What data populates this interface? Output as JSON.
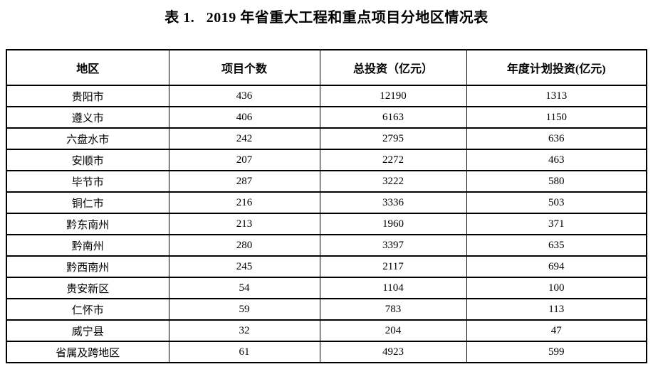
{
  "title": "表 1.   2019 年省重大工程和重点项目分地区情况表",
  "table": {
    "headers": [
      "地区",
      "项目个数",
      "总投资（亿元）",
      "年度计划投资(亿元)"
    ],
    "rows": [
      {
        "region": "贵阳市",
        "count": "436",
        "total": "12190",
        "annual": "1313"
      },
      {
        "region": "遵义市",
        "count": "406",
        "total": "6163",
        "annual": "1150"
      },
      {
        "region": "六盘水市",
        "count": "242",
        "total": "2795",
        "annual": "636"
      },
      {
        "region": "安顺市",
        "count": "207",
        "total": "2272",
        "annual": "463"
      },
      {
        "region": "毕节市",
        "count": "287",
        "total": "3222",
        "annual": "580"
      },
      {
        "region": "铜仁市",
        "count": "216",
        "total": "3336",
        "annual": "503"
      },
      {
        "region": "黔东南州",
        "count": "213",
        "total": "1960",
        "annual": "371"
      },
      {
        "region": "黔南州",
        "count": "280",
        "total": "3397",
        "annual": "635"
      },
      {
        "region": "黔西南州",
        "count": "245",
        "total": "2117",
        "annual": "694"
      },
      {
        "region": "贵安新区",
        "count": "54",
        "total": "1104",
        "annual": "100"
      },
      {
        "region": "仁怀市",
        "count": "59",
        "total": "783",
        "annual": "113"
      },
      {
        "region": "威宁县",
        "count": "32",
        "total": "204",
        "annual": "47"
      },
      {
        "region": "省属及跨地区",
        "count": "61",
        "total": "4923",
        "annual": "599"
      }
    ],
    "colors": {
      "border": "#000000",
      "background": "#ffffff",
      "text": "#000000"
    }
  }
}
